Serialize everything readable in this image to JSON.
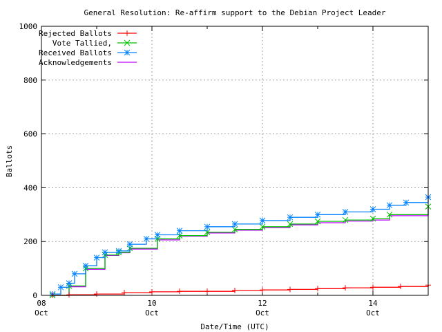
{
  "chart_data": {
    "type": "line",
    "title": "General Resolution: Re-affirm support to the Debian Project Leader",
    "xlabel": "Date/Time (UTC)",
    "ylabel": "Ballots",
    "ylim": [
      0,
      1000
    ],
    "yticks": [
      "0",
      "200",
      "400",
      "600",
      "800",
      "1000"
    ],
    "xlim": [
      "10-08 00:00",
      "10-15 00:00"
    ],
    "xticks": [
      {
        "day": "08",
        "month": "Oct",
        "at": "10-08 00:00"
      },
      {
        "day": "10",
        "month": "Oct",
        "at": "10-10 00:00"
      },
      {
        "day": "12",
        "month": "Oct",
        "at": "10-12 00:00"
      },
      {
        "day": "14",
        "month": "Oct",
        "at": "10-14 00:00"
      }
    ],
    "grid": true,
    "legend_position": "top-left",
    "series": [
      {
        "name": "Rejected Ballots",
        "color": "#ff0000",
        "marker": "plus",
        "points": [
          [
            "10-08 04:48",
            0
          ],
          [
            "10-08 12:00",
            2
          ],
          [
            "10-09 00:00",
            5
          ],
          [
            "10-09 12:00",
            10
          ],
          [
            "10-10 00:00",
            13
          ],
          [
            "10-10 12:00",
            15
          ],
          [
            "10-11 00:00",
            15
          ],
          [
            "10-11 12:00",
            18
          ],
          [
            "10-12 00:00",
            20
          ],
          [
            "10-12 12:00",
            22
          ],
          [
            "10-13 00:00",
            25
          ],
          [
            "10-13 12:00",
            28
          ],
          [
            "10-14 00:00",
            30
          ],
          [
            "10-14 12:00",
            33
          ],
          [
            "10-15 00:00",
            38
          ]
        ]
      },
      {
        "name": "Vote Tallied,",
        "color": "#00c000",
        "marker": "cross",
        "points": [
          [
            "10-08 04:48",
            0
          ],
          [
            "10-08 12:00",
            35
          ],
          [
            "10-08 19:12",
            100
          ],
          [
            "10-09 03:36",
            150
          ],
          [
            "10-09 09:36",
            160
          ],
          [
            "10-09 14:24",
            175
          ],
          [
            "10-10 02:24",
            210
          ],
          [
            "10-10 12:00",
            222
          ],
          [
            "10-11 00:00",
            235
          ],
          [
            "10-11 12:00",
            245
          ],
          [
            "10-12 00:00",
            255
          ],
          [
            "10-12 12:00",
            265
          ],
          [
            "10-13 00:00",
            275
          ],
          [
            "10-13 12:00",
            280
          ],
          [
            "10-14 00:00",
            285
          ],
          [
            "10-14 07:12",
            300
          ],
          [
            "10-15 00:00",
            330
          ]
        ]
      },
      {
        "name": "Received Ballots",
        "color": "#0080ff",
        "marker": "star",
        "points": [
          [
            "10-08 04:48",
            5
          ],
          [
            "10-08 08:24",
            30
          ],
          [
            "10-08 12:00",
            45
          ],
          [
            "10-08 14:24",
            80
          ],
          [
            "10-08 19:12",
            110
          ],
          [
            "10-09 00:00",
            140
          ],
          [
            "10-09 03:36",
            160
          ],
          [
            "10-09 09:36",
            165
          ],
          [
            "10-09 14:24",
            190
          ],
          [
            "10-09 21:36",
            210
          ],
          [
            "10-10 02:24",
            225
          ],
          [
            "10-10 12:00",
            240
          ],
          [
            "10-11 00:00",
            255
          ],
          [
            "10-11 12:00",
            265
          ],
          [
            "10-12 00:00",
            278
          ],
          [
            "10-12 12:00",
            290
          ],
          [
            "10-13 00:00",
            300
          ],
          [
            "10-13 12:00",
            310
          ],
          [
            "10-14 00:00",
            320
          ],
          [
            "10-14 07:12",
            335
          ],
          [
            "10-14 14:24",
            345
          ],
          [
            "10-15 00:00",
            365
          ]
        ]
      },
      {
        "name": "Acknowledgements",
        "color": "#c000ff",
        "marker": "none",
        "points": [
          [
            "10-08 04:48",
            0
          ],
          [
            "10-08 12:00",
            32
          ],
          [
            "10-08 19:12",
            97
          ],
          [
            "10-09 03:36",
            148
          ],
          [
            "10-09 09:36",
            158
          ],
          [
            "10-09 14:24",
            172
          ],
          [
            "10-10 02:24",
            206
          ],
          [
            "10-10 12:00",
            220
          ],
          [
            "10-11 00:00",
            232
          ],
          [
            "10-11 12:00",
            242
          ],
          [
            "10-12 00:00",
            252
          ],
          [
            "10-12 12:00",
            262
          ],
          [
            "10-13 00:00",
            270
          ],
          [
            "10-13 12:00",
            276
          ],
          [
            "10-14 00:00",
            280
          ],
          [
            "10-14 07:12",
            296
          ],
          [
            "10-15 00:00",
            325
          ]
        ]
      }
    ]
  }
}
